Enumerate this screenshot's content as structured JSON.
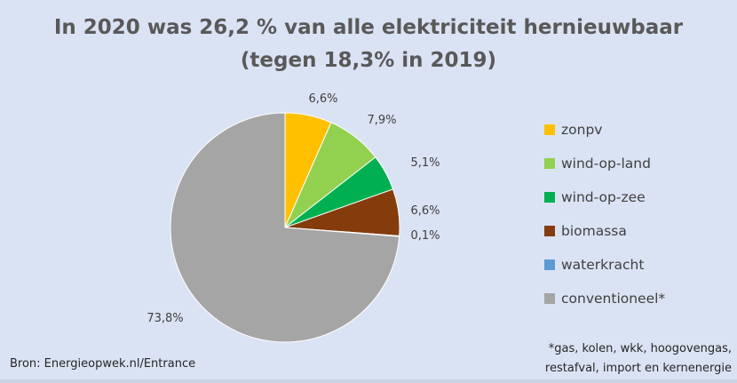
{
  "chart_data": {
    "type": "pie",
    "title_lines": [
      "In 2020 was 26,2 % van alle elektriciteit hernieuwbaar",
      "(tegen 18,3% in 2019)"
    ],
    "slices": [
      {
        "name": "zonpv",
        "value": 6.6,
        "label": "6,6%",
        "color": "#ffc000"
      },
      {
        "name": "wind-op-land",
        "value": 7.9,
        "label": "7,9%",
        "color": "#92d050"
      },
      {
        "name": "wind-op-zee",
        "value": 5.1,
        "label": "5,1%",
        "color": "#00b050"
      },
      {
        "name": "biomassa",
        "value": 6.6,
        "label": "6,6%",
        "color": "#843c0c"
      },
      {
        "name": "waterkracht",
        "value": 0.1,
        "label": "0,1%",
        "color": "#5b9bd5"
      },
      {
        "name": "conventioneel*",
        "value": 73.8,
        "label": "73,8%",
        "color": "#a5a5a5"
      }
    ],
    "legend_position": "right",
    "start_angle": "12 o'clock",
    "direction": "clockwise"
  },
  "source": "Bron: Energieopwek.nl/Entrance",
  "footnote_lines": [
    "*gas, kolen, wkk, hoogovengas,",
    "restafval, import en kernenergie"
  ],
  "colors": {
    "background": "#dae3f3",
    "title": "#595959",
    "text": "#404040"
  }
}
